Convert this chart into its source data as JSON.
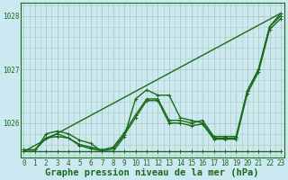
{
  "title": "Graphe pression niveau de la mer (hPa)",
  "bg_color": "#cce8f0",
  "grid_color": "#aaccbb",
  "line_color": "#1a6b1a",
  "xlim": [
    -0.3,
    23.3
  ],
  "ylim": [
    1025.35,
    1028.25
  ],
  "yticks": [
    1026,
    1027,
    1028
  ],
  "xticks": [
    0,
    1,
    2,
    3,
    4,
    5,
    6,
    7,
    8,
    9,
    10,
    11,
    12,
    13,
    14,
    15,
    16,
    17,
    18,
    19,
    20,
    21,
    22,
    23
  ],
  "series": [
    [
      1025.5,
      1025.5,
      1025.72,
      1025.8,
      1025.72,
      1025.6,
      1025.55,
      1025.5,
      1025.55,
      1025.82,
      1026.15,
      1026.45,
      1026.45,
      1026.05,
      1026.05,
      1026.0,
      1026.05,
      1025.75,
      1025.75,
      1025.75,
      1026.6,
      1027.0,
      1027.8,
      1028.0
    ],
    [
      1025.5,
      1025.5,
      1025.72,
      1025.75,
      1025.72,
      1025.58,
      1025.52,
      1025.48,
      1025.52,
      1025.78,
      1026.1,
      1026.42,
      1026.42,
      1026.0,
      1026.0,
      1025.95,
      1025.98,
      1025.7,
      1025.7,
      1025.7,
      1026.55,
      1026.95,
      1027.75,
      1027.95
    ],
    [
      1025.47,
      1025.47,
      1025.47,
      1025.47,
      1025.47,
      1025.47,
      1025.47,
      1025.47,
      1025.47,
      1025.47,
      1025.47,
      1025.47,
      1025.47,
      1025.47,
      1025.47,
      1025.47,
      1025.47,
      1025.47,
      1025.47,
      1025.47,
      1025.47,
      1025.47,
      1025.47,
      1025.47
    ],
    [
      1025.47,
      1025.47,
      1025.8,
      1025.85,
      1025.8,
      1025.68,
      1025.62,
      1025.47,
      1025.47,
      1025.75,
      1026.45,
      1026.62,
      1026.52,
      1026.52,
      1026.1,
      1026.05,
      1026.0,
      1025.72,
      1025.72,
      1025.72,
      1026.6,
      1027.0,
      1027.8,
      1028.05
    ]
  ],
  "straight_line": [
    1025.47,
    1028.05
  ],
  "marker": "+",
  "markersize": 3.5,
  "linewidth": 1.0,
  "title_fontsize": 7.5,
  "tick_fontsize": 5.5
}
